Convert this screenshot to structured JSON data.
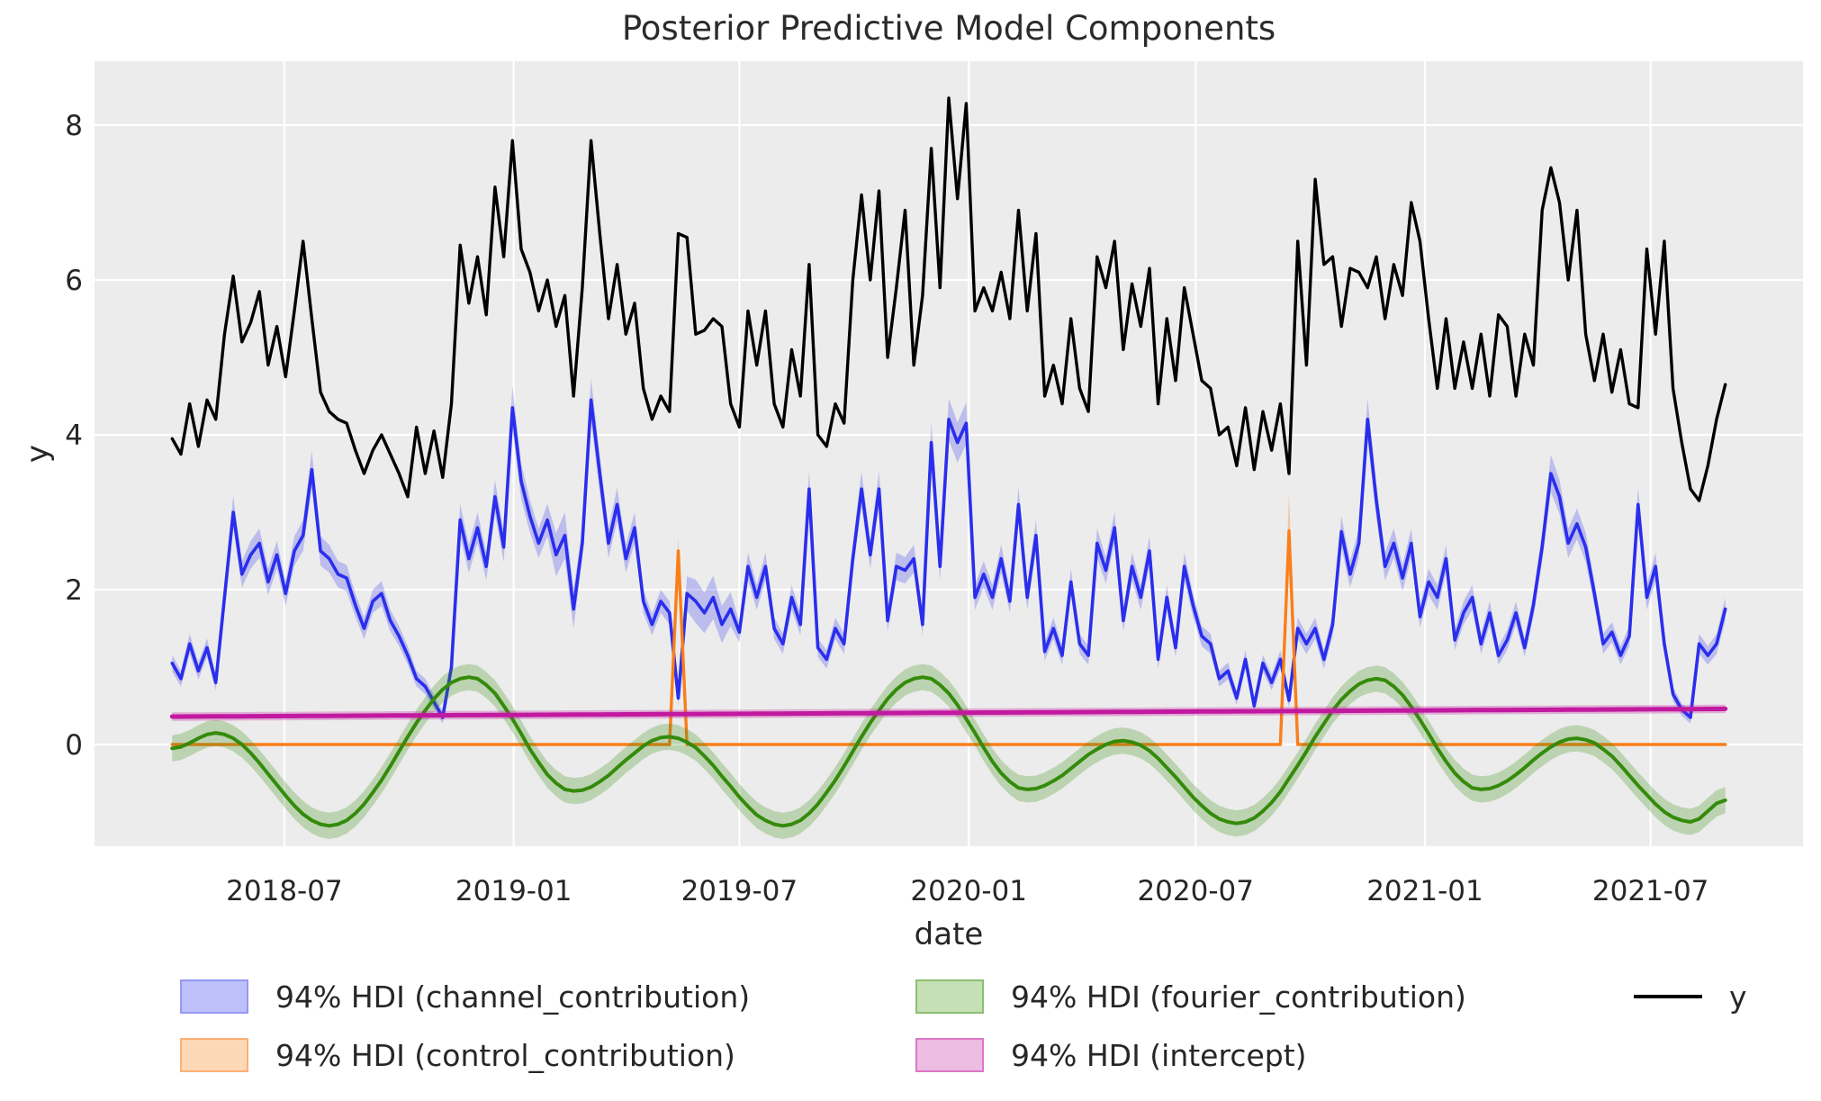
{
  "title": "Posterior Predictive Model Components",
  "axes": {
    "xlabel": "date",
    "ylabel": "y",
    "plot_bg": "#ececec",
    "grid_color": "#ffffff",
    "tick_color": "#262626",
    "x_ticks": [
      {
        "label": "2018-07",
        "pos": 12.86
      },
      {
        "label": "2019-01",
        "pos": 39.14
      },
      {
        "label": "2019-07",
        "pos": 65.0
      },
      {
        "label": "2020-01",
        "pos": 91.29
      },
      {
        "label": "2020-07",
        "pos": 117.29
      },
      {
        "label": "2021-01",
        "pos": 143.57
      },
      {
        "label": "2021-07",
        "pos": 169.43
      }
    ],
    "y_ticks": [
      0,
      2,
      4,
      6,
      8
    ],
    "x_domain_idx": [
      -8.9,
      186.9
    ],
    "y_domain": [
      -1.314,
      8.826
    ]
  },
  "chart_data": {
    "type": "line",
    "title": "Posterior Predictive Model Components",
    "xlabel": "date",
    "ylabel": "y",
    "x_tick_labels": [
      "2018-07",
      "2019-01",
      "2019-07",
      "2020-01",
      "2020-07",
      "2021-01",
      "2021-07"
    ],
    "n_points": 179,
    "x_unit": "weekly index, 0 = first point (spring 2018)",
    "series": [
      {
        "name": "94% HDI (channel_contribution)",
        "kind": "line+band",
        "color": "#2a2eec",
        "band_opacity": 0.25,
        "line_width": 3.6,
        "values": [
          1.05,
          0.85,
          1.3,
          0.95,
          1.25,
          0.8,
          1.9,
          3.0,
          2.2,
          2.45,
          2.6,
          2.1,
          2.45,
          1.95,
          2.5,
          2.7,
          3.55,
          2.5,
          2.4,
          2.2,
          2.15,
          1.8,
          1.5,
          1.85,
          1.95,
          1.6,
          1.4,
          1.15,
          0.85,
          0.75,
          0.55,
          0.35,
          1.0,
          2.9,
          2.4,
          2.8,
          2.3,
          3.2,
          2.55,
          4.35,
          3.4,
          2.95,
          2.6,
          2.9,
          2.45,
          2.7,
          1.75,
          2.6,
          4.45,
          3.5,
          2.6,
          3.1,
          2.4,
          2.8,
          1.85,
          1.55,
          1.85,
          1.7,
          0.6,
          1.95,
          1.85,
          1.7,
          1.9,
          1.55,
          1.75,
          1.45,
          2.3,
          1.9,
          2.3,
          1.5,
          1.3,
          1.9,
          1.55,
          3.3,
          1.25,
          1.1,
          1.5,
          1.3,
          2.4,
          3.3,
          2.45,
          3.3,
          1.6,
          2.3,
          2.25,
          2.4,
          1.55,
          3.9,
          2.3,
          4.2,
          3.9,
          4.15,
          1.9,
          2.2,
          1.9,
          2.4,
          1.85,
          3.1,
          1.9,
          2.7,
          1.2,
          1.5,
          1.15,
          2.1,
          1.3,
          1.15,
          2.6,
          2.25,
          2.8,
          1.6,
          2.3,
          1.9,
          2.5,
          1.1,
          1.9,
          1.25,
          2.3,
          1.8,
          1.4,
          1.3,
          0.85,
          0.95,
          0.6,
          1.1,
          0.5,
          1.05,
          0.8,
          1.1,
          0.57,
          1.5,
          1.3,
          1.5,
          1.1,
          1.55,
          2.75,
          2.2,
          2.6,
          4.2,
          3.15,
          2.3,
          2.6,
          2.15,
          2.6,
          1.65,
          2.1,
          1.9,
          2.4,
          1.35,
          1.7,
          1.9,
          1.3,
          1.7,
          1.15,
          1.35,
          1.7,
          1.25,
          1.8,
          2.55,
          3.5,
          3.2,
          2.6,
          2.85,
          2.55,
          1.95,
          1.3,
          1.45,
          1.15,
          1.4,
          3.1,
          1.9,
          2.3,
          1.3,
          0.65,
          0.45,
          0.35,
          1.3,
          1.15,
          1.3,
          1.75
        ],
        "hdi_half": [
          0.11,
          0.1,
          0.13,
          0.11,
          0.12,
          0.1,
          0.16,
          0.21,
          0.17,
          0.18,
          0.19,
          0.17,
          0.18,
          0.16,
          0.19,
          0.2,
          0.24,
          0.19,
          0.18,
          0.17,
          0.17,
          0.15,
          0.14,
          0.15,
          0.16,
          0.14,
          0.13,
          0.12,
          0.1,
          0.1,
          0.09,
          0.08,
          0.11,
          0.21,
          0.18,
          0.2,
          0.18,
          0.22,
          0.19,
          0.28,
          0.23,
          0.21,
          0.19,
          0.21,
          0.28,
          0.3,
          0.25,
          0.19,
          0.28,
          0.24,
          0.19,
          0.22,
          0.18,
          0.2,
          0.15,
          0.14,
          0.15,
          0.15,
          0.09,
          0.22,
          0.28,
          0.26,
          0.28,
          0.24,
          0.22,
          0.13,
          0.18,
          0.16,
          0.18,
          0.14,
          0.13,
          0.16,
          0.14,
          0.23,
          0.12,
          0.12,
          0.14,
          0.13,
          0.18,
          0.23,
          0.18,
          0.23,
          0.14,
          0.18,
          0.17,
          0.18,
          0.14,
          0.26,
          0.18,
          0.27,
          0.26,
          0.27,
          0.16,
          0.17,
          0.16,
          0.18,
          0.15,
          0.22,
          0.16,
          0.2,
          0.12,
          0.14,
          0.12,
          0.17,
          0.13,
          0.12,
          0.19,
          0.17,
          0.2,
          0.14,
          0.18,
          0.16,
          0.19,
          0.12,
          0.16,
          0.12,
          0.18,
          0.15,
          0.13,
          0.13,
          0.1,
          0.11,
          0.09,
          0.12,
          0.09,
          0.11,
          0.1,
          0.12,
          0.09,
          0.14,
          0.13,
          0.14,
          0.12,
          0.14,
          0.2,
          0.17,
          0.19,
          0.27,
          0.22,
          0.18,
          0.19,
          0.17,
          0.19,
          0.14,
          0.17,
          0.16,
          0.18,
          0.13,
          0.15,
          0.16,
          0.13,
          0.15,
          0.12,
          0.13,
          0.15,
          0.12,
          0.15,
          0.19,
          0.24,
          0.22,
          0.19,
          0.2,
          0.19,
          0.16,
          0.13,
          0.13,
          0.12,
          0.13,
          0.22,
          0.16,
          0.18,
          0.13,
          0.09,
          0.08,
          0.08,
          0.13,
          0.12,
          0.13,
          0.15
        ]
      },
      {
        "name": "94% HDI (control_contribution)",
        "kind": "line+band",
        "color": "#fa7e19",
        "band_opacity": 0.35,
        "line_width": 3.4,
        "values": [
          0,
          0,
          0,
          0,
          0,
          0,
          0,
          0,
          0,
          0,
          0,
          0,
          0,
          0,
          0,
          0,
          0,
          0,
          0,
          0,
          0,
          0,
          0,
          0,
          0,
          0,
          0,
          0,
          0,
          0,
          0,
          0,
          0,
          0,
          0,
          0,
          0,
          0,
          0,
          0,
          0,
          0,
          0,
          0,
          0,
          0,
          0,
          0,
          0,
          0,
          0,
          0,
          0,
          0,
          0,
          0,
          0,
          0,
          2.5,
          0,
          0,
          0,
          0,
          0,
          0,
          0,
          0,
          0,
          0,
          0,
          0,
          0,
          0,
          0,
          0,
          0,
          0,
          0,
          0,
          0,
          0,
          0,
          0,
          0,
          0,
          0,
          0,
          0,
          0,
          0,
          0,
          0,
          0,
          0,
          0,
          0,
          0,
          0,
          0,
          0,
          0,
          0,
          0,
          0,
          0,
          0,
          0,
          0,
          0,
          0,
          0,
          0,
          0,
          0,
          0,
          0,
          0,
          0,
          0,
          0,
          0,
          0,
          0,
          0,
          0,
          0,
          0,
          0,
          2.76,
          0,
          0,
          0,
          0,
          0,
          0,
          0,
          0,
          0,
          0,
          0,
          0,
          0,
          0,
          0,
          0,
          0,
          0,
          0,
          0,
          0,
          0,
          0,
          0,
          0,
          0,
          0,
          0,
          0,
          0,
          0,
          0,
          0,
          0,
          0,
          0,
          0,
          0,
          0,
          0,
          0,
          0,
          0,
          0,
          0,
          0,
          0,
          0,
          0,
          0
        ],
        "hdi_half_sparse": {
          "58": 0.18,
          "128": 0.5
        }
      },
      {
        "name": "94% HDI (fourier_contribution)",
        "kind": "line+band",
        "color": "#348b0a",
        "band_opacity": 0.26,
        "line_width": 4,
        "values": [
          -0.05,
          -0.03,
          0.02,
          0.08,
          0.13,
          0.15,
          0.13,
          0.08,
          0.0,
          -0.11,
          -0.24,
          -0.38,
          -0.52,
          -0.66,
          -0.79,
          -0.9,
          -0.98,
          -1.03,
          -1.05,
          -1.03,
          -0.98,
          -0.89,
          -0.77,
          -0.62,
          -0.46,
          -0.28,
          -0.09,
          0.1,
          0.28,
          0.44,
          0.59,
          0.71,
          0.8,
          0.85,
          0.87,
          0.85,
          0.77,
          0.66,
          0.5,
          0.33,
          0.14,
          -0.06,
          -0.23,
          -0.39,
          -0.5,
          -0.58,
          -0.6,
          -0.59,
          -0.55,
          -0.48,
          -0.4,
          -0.3,
          -0.2,
          -0.11,
          -0.02,
          0.05,
          0.09,
          0.1,
          0.08,
          0.03,
          -0.04,
          -0.15,
          -0.27,
          -0.41,
          -0.54,
          -0.68,
          -0.8,
          -0.91,
          -0.98,
          -1.03,
          -1.05,
          -1.03,
          -0.98,
          -0.89,
          -0.77,
          -0.62,
          -0.46,
          -0.28,
          -0.09,
          0.1,
          0.28,
          0.44,
          0.59,
          0.71,
          0.8,
          0.85,
          0.87,
          0.85,
          0.77,
          0.66,
          0.51,
          0.33,
          0.15,
          -0.04,
          -0.22,
          -0.37,
          -0.48,
          -0.56,
          -0.58,
          -0.57,
          -0.53,
          -0.47,
          -0.4,
          -0.31,
          -0.22,
          -0.13,
          -0.06,
          0.0,
          0.04,
          0.05,
          0.03,
          -0.01,
          -0.08,
          -0.18,
          -0.3,
          -0.42,
          -0.55,
          -0.68,
          -0.79,
          -0.89,
          -0.96,
          -1.0,
          -1.02,
          -1.0,
          -0.95,
          -0.86,
          -0.75,
          -0.61,
          -0.44,
          -0.27,
          -0.09,
          0.1,
          0.27,
          0.44,
          0.58,
          0.69,
          0.78,
          0.83,
          0.85,
          0.83,
          0.75,
          0.64,
          0.49,
          0.32,
          0.14,
          -0.05,
          -0.22,
          -0.37,
          -0.48,
          -0.56,
          -0.58,
          -0.57,
          -0.53,
          -0.47,
          -0.39,
          -0.3,
          -0.2,
          -0.11,
          -0.03,
          0.03,
          0.07,
          0.08,
          0.06,
          0.02,
          -0.06,
          -0.15,
          -0.27,
          -0.4,
          -0.53,
          -0.65,
          -0.77,
          -0.87,
          -0.94,
          -0.98,
          -1.0,
          -0.96,
          -0.86,
          -0.76,
          -0.72
        ],
        "hdi_half_const": 0.17
      },
      {
        "name": "94% HDI (intercept)",
        "kind": "line+band",
        "color": "#c1199f",
        "band_opacity": 0.3,
        "line_width": 5,
        "start_end": [
          0.36,
          0.46
        ],
        "hdi_half_const": 0.055
      },
      {
        "name": "y",
        "kind": "line",
        "color": "#000000",
        "line_width": 3.4,
        "values": [
          3.95,
          3.75,
          4.4,
          3.85,
          4.45,
          4.2,
          5.3,
          6.05,
          5.2,
          5.45,
          5.85,
          4.9,
          5.4,
          4.75,
          5.6,
          6.5,
          5.5,
          4.55,
          4.3,
          4.2,
          4.15,
          3.8,
          3.5,
          3.8,
          4.0,
          3.75,
          3.5,
          3.2,
          4.1,
          3.5,
          4.05,
          3.45,
          4.4,
          6.45,
          5.7,
          6.3,
          5.55,
          7.2,
          6.3,
          7.8,
          6.4,
          6.1,
          5.6,
          6.0,
          5.4,
          5.8,
          4.5,
          5.9,
          7.8,
          6.6,
          5.5,
          6.2,
          5.3,
          5.7,
          4.6,
          4.2,
          4.5,
          4.3,
          6.6,
          6.55,
          5.3,
          5.35,
          5.5,
          5.4,
          4.4,
          4.1,
          5.6,
          4.9,
          5.6,
          4.4,
          4.1,
          5.1,
          4.5,
          6.2,
          4.0,
          3.85,
          4.4,
          4.15,
          6.0,
          7.1,
          6.0,
          7.15,
          5.0,
          5.9,
          6.9,
          4.9,
          5.8,
          7.7,
          5.9,
          8.35,
          7.05,
          8.28,
          5.6,
          5.9,
          5.6,
          6.1,
          5.5,
          6.9,
          5.6,
          6.6,
          4.5,
          4.9,
          4.4,
          5.5,
          4.6,
          4.3,
          6.3,
          5.9,
          6.5,
          5.1,
          5.95,
          5.4,
          6.15,
          4.4,
          5.5,
          4.7,
          5.9,
          5.3,
          4.7,
          4.6,
          4.0,
          4.1,
          3.6,
          4.35,
          3.55,
          4.3,
          3.8,
          4.4,
          3.5,
          6.5,
          4.9,
          7.3,
          6.2,
          6.3,
          5.4,
          6.15,
          6.1,
          5.9,
          6.3,
          5.5,
          6.2,
          5.8,
          7.0,
          6.5,
          5.5,
          4.6,
          5.5,
          4.6,
          5.2,
          4.6,
          5.3,
          4.5,
          5.55,
          5.4,
          4.5,
          5.3,
          4.9,
          6.9,
          7.45,
          7.0,
          6.0,
          6.9,
          5.3,
          4.7,
          5.3,
          4.55,
          5.1,
          4.4,
          4.35,
          6.4,
          5.3,
          6.5,
          4.6,
          3.9,
          3.3,
          3.15,
          3.6,
          4.2,
          4.65
        ]
      }
    ]
  },
  "legend": {
    "entries": [
      {
        "label": "94% HDI (channel_contribution)",
        "patch_fill": "#bdc0fa",
        "patch_stroke": "#9598f4"
      },
      {
        "label": "94% HDI (control_contribution)",
        "patch_fill": "#fdd8b6",
        "patch_stroke": "#fcb074"
      },
      {
        "label": "94% HDI (fourier_contribution)",
        "patch_fill": "#c6e0b6",
        "patch_stroke": "#8cbe70"
      },
      {
        "label": "94% HDI (intercept)",
        "patch_fill": "#edbce2",
        "patch_stroke": "#de77c5"
      },
      {
        "label": "y",
        "line_color": "#000000"
      }
    ]
  }
}
